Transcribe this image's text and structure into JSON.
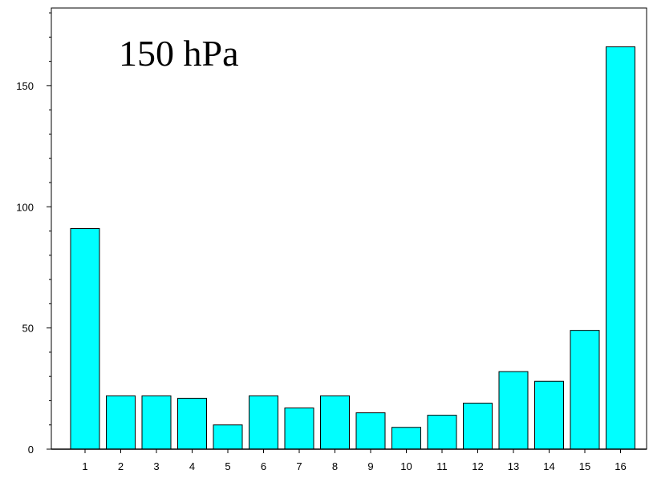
{
  "chart_data": {
    "type": "bar",
    "title": "150 hPa",
    "xlabel": "",
    "ylabel": "",
    "categories": [
      "1",
      "2",
      "3",
      "4",
      "5",
      "6",
      "7",
      "8",
      "9",
      "10",
      "11",
      "12",
      "13",
      "14",
      "15",
      "16"
    ],
    "values": [
      91,
      22,
      22,
      21,
      10,
      22,
      17,
      22,
      15,
      9,
      14,
      19,
      32,
      28,
      49,
      166
    ],
    "ylim": [
      0,
      182
    ],
    "yticks": [
      0,
      50,
      100,
      150
    ],
    "bar_color": "#00ffff",
    "grid": false,
    "legend": "none"
  }
}
